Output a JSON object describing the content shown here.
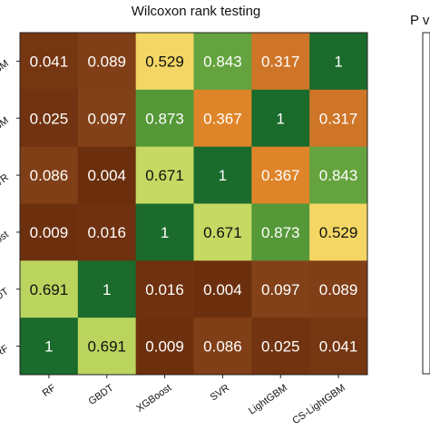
{
  "chart_data": {
    "type": "heatmap",
    "title": "Wilcoxon rank testing",
    "x_categories": [
      "RF",
      "GBDT",
      "XGBoost",
      "SVR",
      "LightGBM",
      "CS-LightGBM"
    ],
    "y_categories": [
      "CS-LightGBM",
      "LightGBM",
      "SVR",
      "XGBoost",
      "GBDT",
      "RF"
    ],
    "matrix": [
      [
        0.041,
        0.089,
        0.529,
        0.843,
        0.317,
        1
      ],
      [
        0.025,
        0.097,
        0.873,
        0.367,
        1,
        0.317
      ],
      [
        0.086,
        0.004,
        0.671,
        1,
        0.367,
        0.843
      ],
      [
        0.009,
        0.016,
        1,
        0.671,
        0.873,
        0.529
      ],
      [
        0.691,
        1,
        0.016,
        0.004,
        0.097,
        0.089
      ],
      [
        1,
        0.691,
        0.009,
        0.086,
        0.025,
        0.041
      ]
    ],
    "cell_labels": [
      [
        "0.041",
        "0.089",
        "0.529",
        "0.843",
        "0.317",
        "1"
      ],
      [
        "0.025",
        "0.097",
        "0.873",
        "0.367",
        "1",
        "0.317"
      ],
      [
        "0.086",
        "0.004",
        "0.671",
        "1",
        "0.367",
        "0.843"
      ],
      [
        "0.009",
        "0.016",
        "1",
        "0.671",
        "0.873",
        "0.529"
      ],
      [
        "0.691",
        "1",
        "0.016",
        "0.004",
        "0.097",
        "0.089"
      ],
      [
        "1",
        "0.691",
        "0.009",
        "0.086",
        "0.025",
        "0.041"
      ]
    ],
    "value_range": [
      0,
      1
    ],
    "colormap": [
      "#6b2e0d",
      "#8f4a1e",
      "#c46a27",
      "#f39a2b",
      "#f5f07c",
      "#b0cf58",
      "#5c9e3a",
      "#1a6b2c"
    ],
    "colorbar_label": "P v",
    "grid": false
  }
}
